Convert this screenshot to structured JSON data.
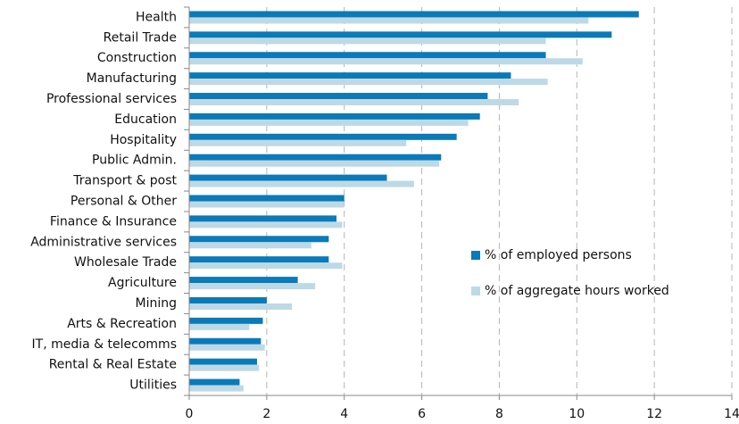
{
  "chart_data": {
    "type": "bar",
    "orientation": "horizontal",
    "categories": [
      "Health",
      "Retail Trade",
      "Construction",
      "Manufacturing",
      "Professional services",
      "Education",
      "Hospitality",
      "Public Admin.",
      "Transport & post",
      "Personal & Other",
      "Finance & Insurance",
      "Administrative services",
      "Wholesale Trade",
      "Agriculture",
      "Mining",
      "Arts & Recreation",
      "IT, media & telecomms",
      "Rental & Real Estate",
      "Utilities"
    ],
    "series": [
      {
        "name": "% of employed persons",
        "color": "#0a7ab8",
        "values": [
          11.6,
          10.9,
          9.2,
          8.3,
          7.7,
          7.5,
          6.9,
          6.5,
          5.1,
          4.0,
          3.8,
          3.6,
          3.6,
          2.8,
          2.0,
          1.9,
          1.85,
          1.75,
          1.3
        ]
      },
      {
        "name": "% of aggregate hours worked",
        "color": "#bed9e6",
        "values": [
          10.3,
          9.2,
          10.15,
          9.25,
          8.5,
          7.2,
          5.6,
          6.45,
          5.8,
          4.0,
          3.95,
          3.15,
          3.95,
          3.25,
          2.65,
          1.55,
          1.95,
          1.8,
          1.4
        ]
      }
    ],
    "xlim": [
      0,
      14
    ],
    "xticks": [
      0,
      2,
      4,
      6,
      8,
      10,
      12,
      14
    ],
    "title": "",
    "xlabel": "",
    "ylabel": "",
    "grid": "vertical dashed",
    "legend_position": "right-middle"
  }
}
